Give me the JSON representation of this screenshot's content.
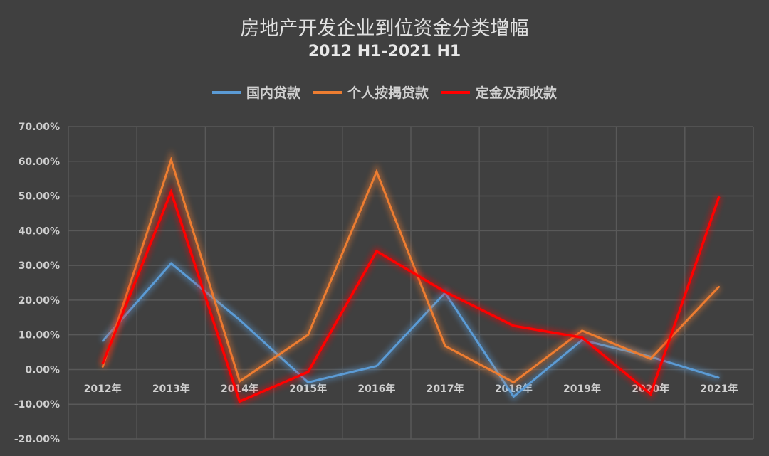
{
  "chart_data": {
    "type": "line",
    "title": "房地产开发企业到位资金分类增幅",
    "subtitle": "2012 H1-2021 H1",
    "categories": [
      "2012年",
      "2013年",
      "2014年",
      "2015年",
      "2016年",
      "2017年",
      "2018年",
      "2019年",
      "2020年",
      "2021年"
    ],
    "yticks": [
      "70.00%",
      "60.00%",
      "50.00%",
      "40.00%",
      "30.00%",
      "20.00%",
      "10.00%",
      "0.00%",
      "-10.00%",
      "-20.00%"
    ],
    "ylim": [
      -20,
      70
    ],
    "yunit": "%",
    "grid": true,
    "legend_position": "top",
    "series": [
      {
        "name": "国内贷款",
        "color": "#5b9bd5",
        "values": [
          8.2,
          30.6,
          14.3,
          -3.7,
          1.0,
          22.1,
          -7.8,
          8.5,
          3.7,
          -2.4
        ]
      },
      {
        "name": "个人按揭贷款",
        "color": "#ed7d31",
        "values": [
          0.7,
          60.4,
          -3.4,
          10.0,
          57.0,
          6.8,
          -3.7,
          11.2,
          3.1,
          23.9
        ]
      },
      {
        "name": "定金及预收款",
        "color": "#ff0000",
        "values": [
          1.7,
          51.2,
          -9.2,
          -0.7,
          34.1,
          22.4,
          12.6,
          9.2,
          -7.1,
          49.8
        ]
      }
    ]
  }
}
